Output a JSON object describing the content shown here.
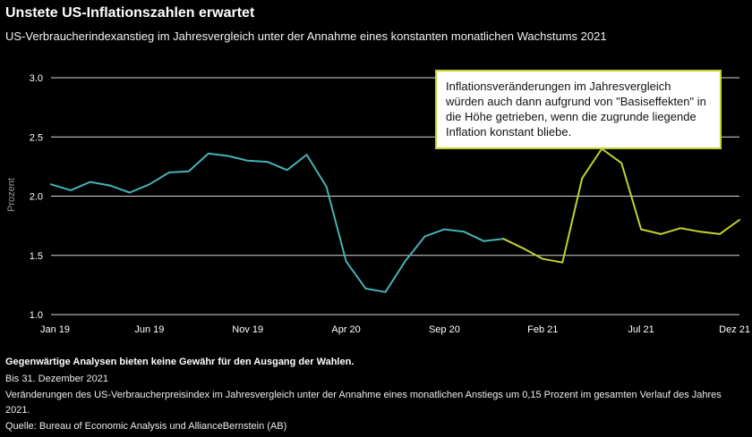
{
  "header": {
    "title": "Unstete US-Inflationszahlen erwartet",
    "subtitle": "US-Verbraucherindexanstieg im Jahresvergleich unter der Annahme eines konstanten monatlichen Wachstums 2021"
  },
  "annotation": {
    "text": "Inflationsveränderungen im Jahresvergleich würden auch dann aufgrund von \"Basiseffekten\" in die Höhe getrieben, wenn die zugrunde liegende Inflation konstant bliebe."
  },
  "footer": {
    "disclaimer": "Gegenwärtige Analysen bieten keine Gewähr für den Ausgang der Wahlen.",
    "as_of": "Bis 31. Dezember 2021",
    "note": "Veränderungen des US-Verbraucherpreisindex im Jahresvergleich unter der Annahme eines monatlichen Anstiegs um 0,15 Prozent im gesamten Verlauf des Jahres 2021.",
    "source": "Quelle: Bureau of Economic Analysis und AllianceBernstein (AB)"
  },
  "colors": {
    "background": "#000000",
    "grid": "#d9d9d9",
    "axis_text": "#ffffff",
    "ylabel_text": "#999999",
    "actual_line": "#46b2b5",
    "projection_line": "#c2d22e",
    "annotation_bg": "#ffffff",
    "annotation_text": "#111111"
  },
  "chart_data": {
    "type": "line",
    "title": "Unstete US-Inflationszahlen erwartet",
    "subtitle": "US-Verbraucherindexanstieg im Jahresvergleich unter der Annahme eines konstanten monatlichen Wachstums 2021",
    "xlabel": "",
    "ylabel": "Prozent",
    "ylim": [
      1.0,
      3.0
    ],
    "yticks": [
      1.0,
      1.5,
      2.0,
      2.5,
      3.0
    ],
    "ytick_labels": [
      "1.0",
      "1.5",
      "2.0",
      "2.5",
      "3.0"
    ],
    "grid": true,
    "legend": "none",
    "x_count": 36,
    "x_unit": "Monate, Jan 2019 bis Dez 2021",
    "xticks": [
      {
        "index": 0,
        "label": "Jan 19"
      },
      {
        "index": 5,
        "label": "Jun 19"
      },
      {
        "index": 10,
        "label": "Nov 19"
      },
      {
        "index": 15,
        "label": "Apr 20"
      },
      {
        "index": 20,
        "label": "Sep 20"
      },
      {
        "index": 25,
        "label": "Feb 21"
      },
      {
        "index": 30,
        "label": "Jul 21"
      },
      {
        "index": 35,
        "label": "Dez 21"
      }
    ],
    "series": [
      {
        "name": "actual",
        "color": "#46b2b5",
        "values": [
          2.1,
          2.05,
          2.12,
          2.09,
          2.03,
          2.1,
          2.2,
          2.21,
          2.36,
          2.34,
          2.3,
          2.29,
          2.22,
          2.35,
          2.08,
          1.45,
          1.22,
          1.19,
          1.45,
          1.66,
          1.72,
          1.7,
          1.62,
          1.64,
          null,
          null,
          null,
          null,
          null,
          null,
          null,
          null,
          null,
          null,
          null,
          null
        ]
      },
      {
        "name": "projection",
        "color": "#c2d22e",
        "values": [
          null,
          null,
          null,
          null,
          null,
          null,
          null,
          null,
          null,
          null,
          null,
          null,
          null,
          null,
          null,
          null,
          null,
          null,
          null,
          null,
          null,
          null,
          null,
          1.64,
          1.56,
          1.47,
          1.44,
          2.15,
          2.4,
          2.28,
          1.72,
          1.68,
          1.73,
          1.7,
          1.68,
          1.8
        ]
      }
    ]
  }
}
